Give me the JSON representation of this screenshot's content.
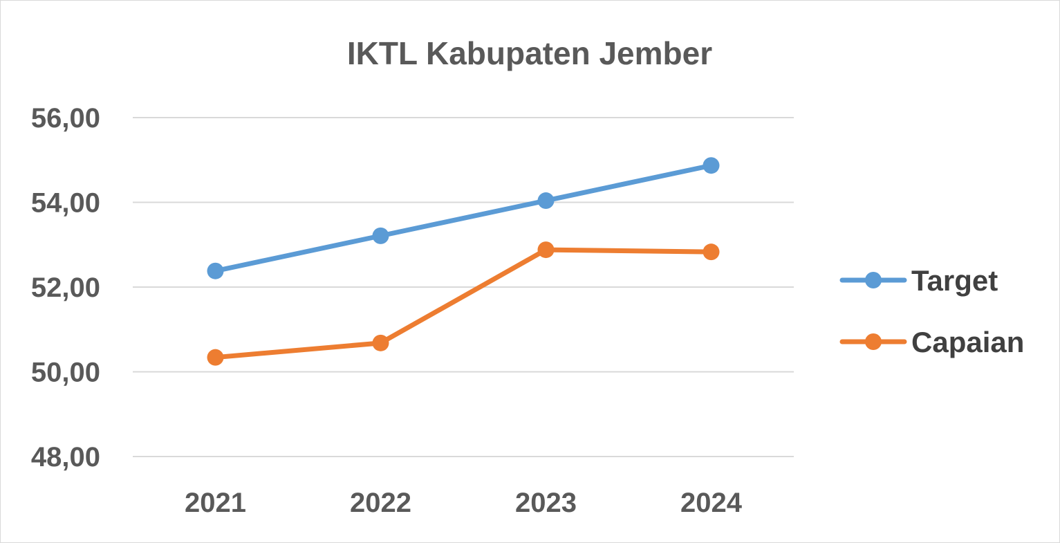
{
  "chart_data": {
    "type": "line",
    "title": "IKTL Kabupaten Jember",
    "xlabel": "",
    "ylabel": "",
    "categories": [
      "2021",
      "2022",
      "2023",
      "2024"
    ],
    "ylim": [
      48,
      56
    ],
    "yticks": [
      48,
      50,
      52,
      54,
      56
    ],
    "ytick_labels": [
      "48,00",
      "50,00",
      "52,00",
      "54,00",
      "56,00"
    ],
    "grid": true,
    "legend_position": "right",
    "series": [
      {
        "name": "Target",
        "color": "#5b9bd5",
        "values": [
          52.38,
          53.21,
          54.04,
          54.87
        ]
      },
      {
        "name": "Capaian",
        "color": "#ed7d31",
        "values": [
          50.34,
          50.68,
          52.88,
          52.83
        ]
      }
    ]
  }
}
